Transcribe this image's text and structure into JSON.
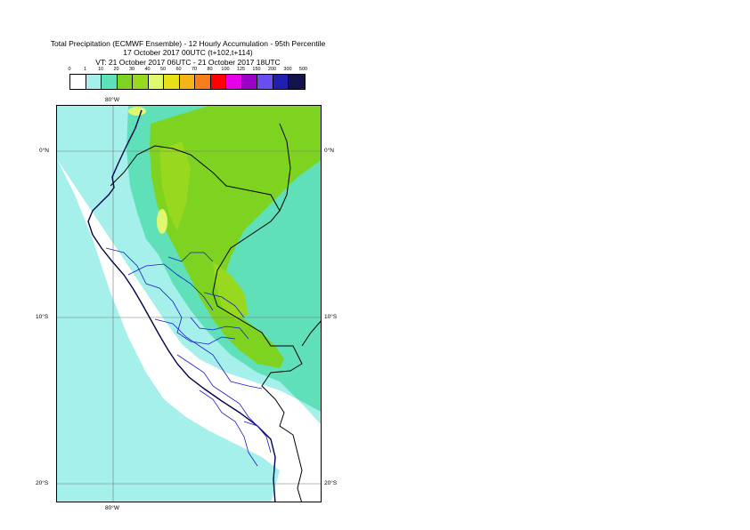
{
  "title": {
    "line1": "Total Precipitation (ECMWF Ensemble) - 12 Hourly Accumulation - 95th Percentile",
    "line2": "17 October 2017 00UTC (t+102,t+114)",
    "line3": "VT: 21 October 2017 06UTC - 21 October 2017 18UTC"
  },
  "legend": {
    "ticks": [
      "0",
      "1",
      "10",
      "20",
      "30",
      "40",
      "50",
      "60",
      "70",
      "80",
      "100",
      "125",
      "150",
      "200",
      "300",
      "500"
    ],
    "colors": [
      "#ffffff",
      "#a6f0ec",
      "#5fe0b8",
      "#7ed321",
      "#98d920",
      "#e0f870",
      "#e6e21a",
      "#f5b51a",
      "#f57d1a",
      "#ff0000",
      "#e600e6",
      "#9a00c8",
      "#6a4cf0",
      "#1f1fb0",
      "#12124f"
    ]
  },
  "coords": {
    "lon_top": "80°W",
    "lon_bottom": "80°W",
    "lat_0_left": "0°N",
    "lat_0_right": "0°N",
    "lat_10_left": "10°S",
    "lat_10_right": "10°S",
    "lat_20_left": "20°S",
    "lat_20_right": "20°S"
  }
}
